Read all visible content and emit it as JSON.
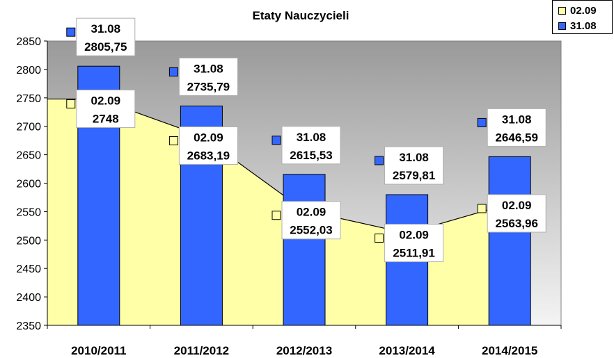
{
  "chart_data": {
    "type": "bar",
    "title": "Etaty Nauczycieli",
    "xlabel": "",
    "ylabel": "",
    "categories": [
      "2010/2011",
      "2011/2012",
      "2012/2013",
      "2013/2014",
      "2014/2015"
    ],
    "ylim": [
      2350,
      2850
    ],
    "yticks": [
      "2350",
      "2400",
      "2450",
      "2500",
      "2550",
      "2600",
      "2650",
      "2700",
      "2750",
      "2800",
      "2850"
    ],
    "legend_position": "top-right",
    "grid": false,
    "series": [
      {
        "name": "02.09",
        "render": "area",
        "color": "#FFFFA8",
        "values": [
          2748,
          2683.19,
          2552.03,
          2511.91,
          2563.96
        ],
        "value_labels": [
          "2748",
          "2683,19",
          "2552,03",
          "2511,91",
          "2563,96"
        ]
      },
      {
        "name": "31.08",
        "render": "bar",
        "color": "#3366FF",
        "values": [
          2805.75,
          2735.79,
          2615.53,
          2579.81,
          2646.59
        ],
        "value_labels": [
          "2805,75",
          "2735,79",
          "2615,53",
          "2579,81",
          "2646,59"
        ]
      }
    ]
  }
}
